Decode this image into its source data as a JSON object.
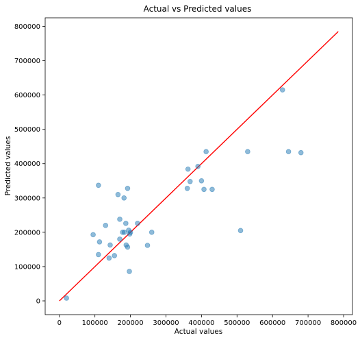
{
  "chart_data": {
    "type": "scatter",
    "title": "Actual vs Predicted values",
    "xlabel": "Actual values",
    "ylabel": "Predicted values",
    "xlim": [
      -40000,
      825000
    ],
    "ylim": [
      -40000,
      825000
    ],
    "xticks": [
      0,
      100000,
      200000,
      300000,
      400000,
      500000,
      600000,
      700000,
      800000
    ],
    "yticks": [
      0,
      100000,
      200000,
      300000,
      400000,
      500000,
      600000,
      700000,
      800000
    ],
    "xtick_labels": [
      "0",
      "100000",
      "200000",
      "300000",
      "400000",
      "500000",
      "600000",
      "700000",
      "800000"
    ],
    "ytick_labels": [
      "0",
      "100000",
      "200000",
      "300000",
      "400000",
      "500000",
      "600000",
      "700000",
      "800000"
    ],
    "grid": false,
    "point_color": "#1f77b4",
    "line_color": "#ff0000",
    "reference_line": {
      "x": [
        0,
        785000
      ],
      "y": [
        0,
        785000
      ]
    },
    "points": [
      [
        20000,
        8000
      ],
      [
        95000,
        193000
      ],
      [
        110000,
        135000
      ],
      [
        110000,
        337000
      ],
      [
        113000,
        172000
      ],
      [
        130000,
        220000
      ],
      [
        140000,
        125000
      ],
      [
        143000,
        163000
      ],
      [
        155000,
        132000
      ],
      [
        165000,
        310000
      ],
      [
        170000,
        180000
      ],
      [
        170000,
        238000
      ],
      [
        178000,
        200000
      ],
      [
        182000,
        300000
      ],
      [
        183000,
        200000
      ],
      [
        187000,
        226000
      ],
      [
        188000,
        163000
      ],
      [
        192000,
        157000
      ],
      [
        192000,
        328000
      ],
      [
        195000,
        206000
      ],
      [
        197000,
        86000
      ],
      [
        198000,
        195000
      ],
      [
        200000,
        200000
      ],
      [
        220000,
        226000
      ],
      [
        248000,
        162000
      ],
      [
        260000,
        200000
      ],
      [
        360000,
        328000
      ],
      [
        362000,
        384000
      ],
      [
        368000,
        348000
      ],
      [
        390000,
        392000
      ],
      [
        400000,
        350000
      ],
      [
        407000,
        325000
      ],
      [
        413000,
        435000
      ],
      [
        430000,
        325000
      ],
      [
        510000,
        205000
      ],
      [
        530000,
        435000
      ],
      [
        628000,
        615000
      ],
      [
        645000,
        435000
      ],
      [
        680000,
        432000
      ]
    ]
  }
}
